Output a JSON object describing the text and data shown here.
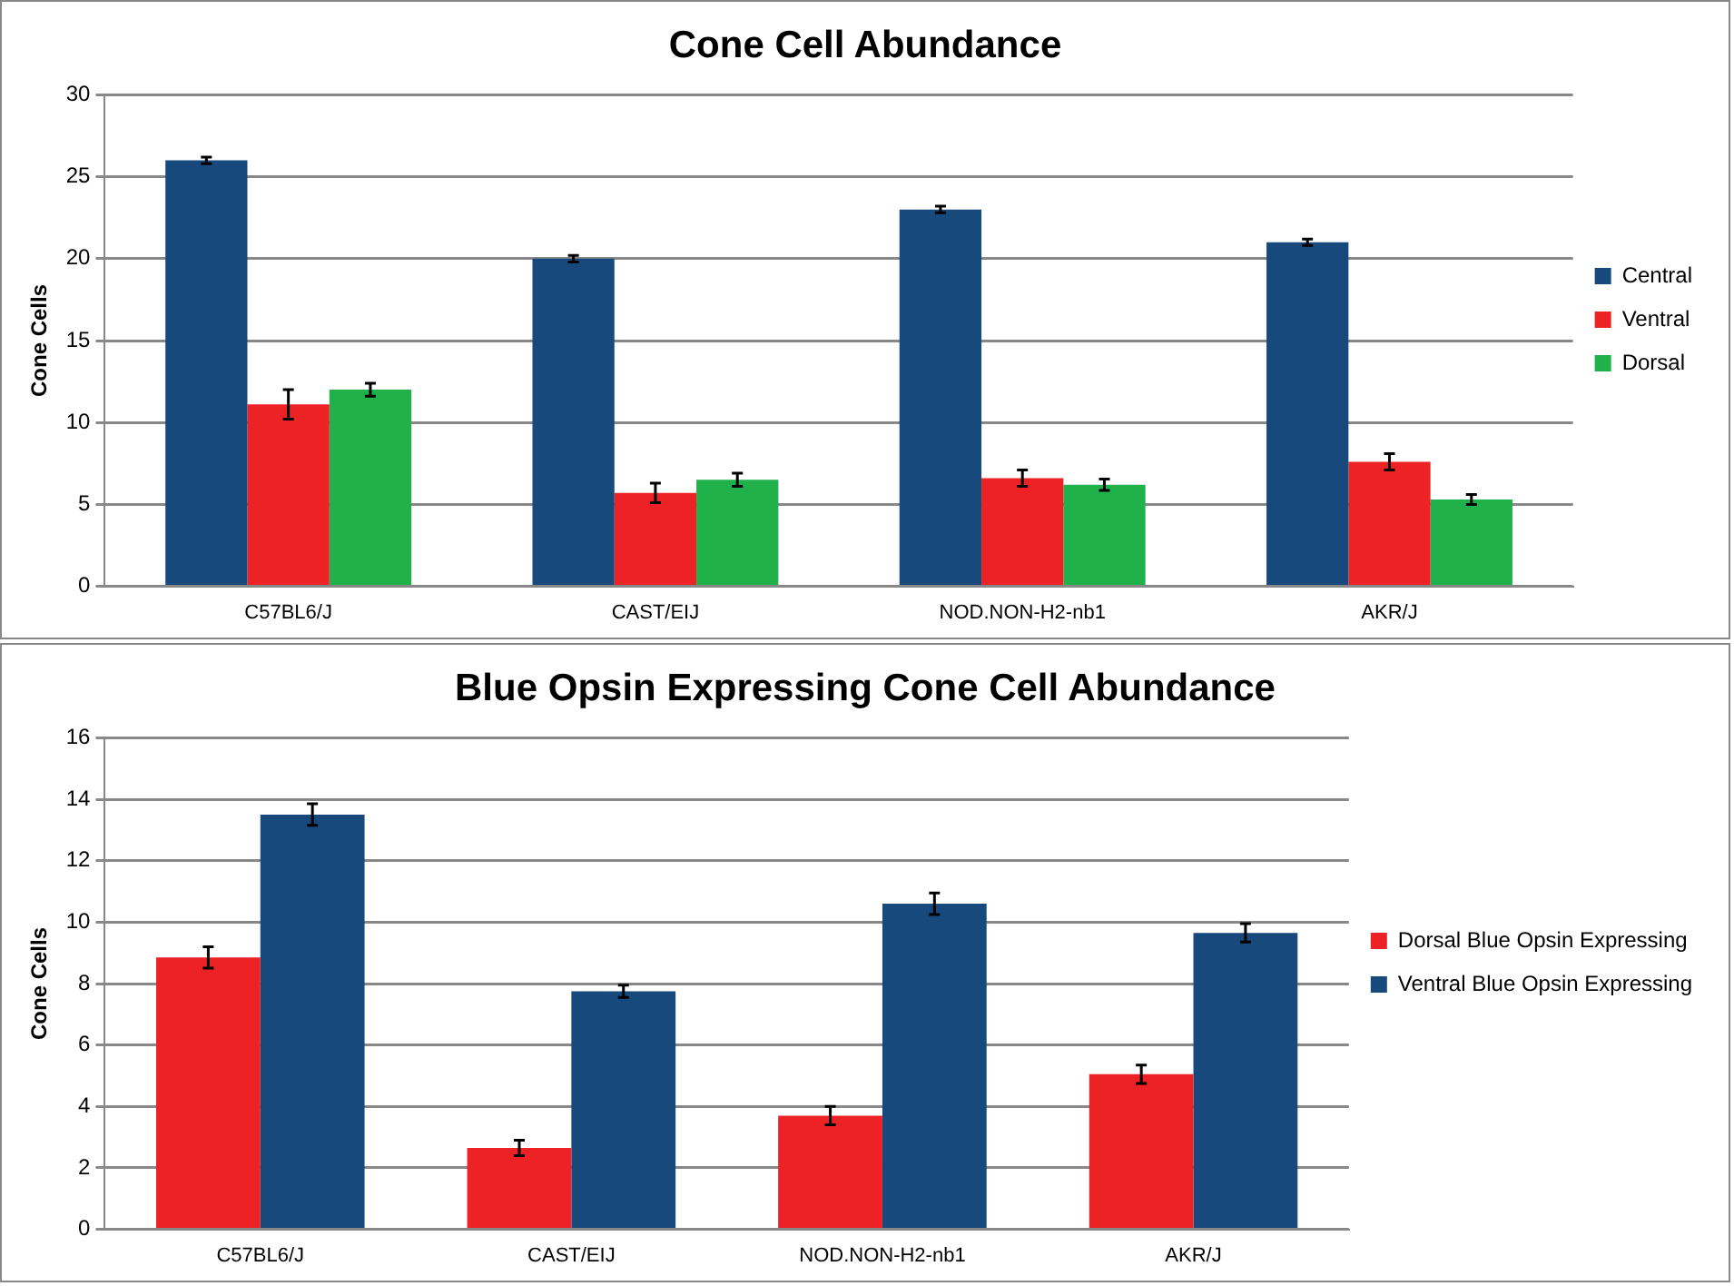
{
  "chart_data": [
    {
      "type": "bar",
      "title": "Cone Cell Abundance",
      "ylabel": "Cone Cells",
      "categories": [
        "C57BL6/J",
        "CAST/EIJ",
        "NOD.NON-H2-nb1",
        "AKR/J"
      ],
      "series": [
        {
          "name": "Central",
          "color": "#17497d",
          "values": [
            26,
            20,
            23,
            21
          ],
          "errors": [
            0.2,
            0.2,
            0.2,
            0.2
          ]
        },
        {
          "name": "Ventral",
          "color": "#ed2224",
          "values": [
            11.1,
            5.7,
            6.6,
            7.6
          ],
          "errors": [
            0.9,
            0.6,
            0.5,
            0.5
          ]
        },
        {
          "name": "Dorsal",
          "color": "#21b14b",
          "values": [
            12,
            6.5,
            6.2,
            5.3
          ],
          "errors": [
            0.4,
            0.4,
            0.35,
            0.3
          ]
        }
      ],
      "ylim": [
        0,
        30
      ],
      "yticks": [
        0,
        5,
        10,
        15,
        20,
        25,
        30
      ],
      "grid": "y",
      "legend": "right"
    },
    {
      "type": "bar",
      "title": "Blue Opsin Expressing Cone Cell Abundance",
      "ylabel": "Cone Cells",
      "categories": [
        "C57BL6/J",
        "CAST/EIJ",
        "NOD.NON-H2-nb1",
        "AKR/J"
      ],
      "series": [
        {
          "name": "Dorsal Blue Opsin Expressing",
          "color": "#ed2224",
          "values": [
            8.85,
            2.65,
            3.7,
            5.05
          ],
          "errors": [
            0.35,
            0.25,
            0.3,
            0.3
          ]
        },
        {
          "name": "Ventral Blue Opsin Expressing",
          "color": "#17497d",
          "values": [
            13.5,
            7.75,
            10.6,
            9.65
          ],
          "errors": [
            0.35,
            0.2,
            0.35,
            0.3
          ]
        }
      ],
      "ylim": [
        0,
        16
      ],
      "yticks": [
        0,
        2,
        4,
        6,
        8,
        10,
        12,
        14,
        16
      ],
      "grid": "y",
      "legend": "right"
    }
  ]
}
